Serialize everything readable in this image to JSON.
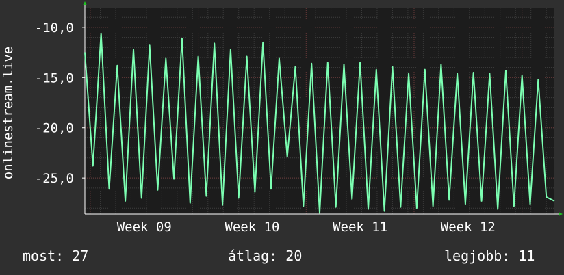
{
  "chart_data": {
    "type": "line",
    "ylabel": "onlinestream.live",
    "y_ticks": [
      "-10,0",
      "-15,0",
      "-20,0",
      "-25,0"
    ],
    "y_tick_values": [
      -10,
      -15,
      -20,
      -25
    ],
    "ylim": [
      -28.6,
      -8.1
    ],
    "x_ticks": [
      "Week 09",
      "Week 10",
      "Week 11",
      "Week 12"
    ],
    "x_tick_values": [
      2.2,
      6.2,
      10.2,
      14.2
    ],
    "xlim": [
      0,
      17.4
    ],
    "grid": true,
    "series": [
      {
        "color": "#7cffb2",
        "x": [
          0,
          0.3,
          0.6,
          0.9,
          1.2,
          1.5,
          1.8,
          2.1,
          2.4,
          2.7,
          3.0,
          3.3,
          3.6,
          3.9,
          4.2,
          4.5,
          4.8,
          5.1,
          5.4,
          5.7,
          6.0,
          6.3,
          6.6,
          6.9,
          7.2,
          7.5,
          7.8,
          8.1,
          8.4,
          8.7,
          9.0,
          9.3,
          9.6,
          9.9,
          10.2,
          10.5,
          10.8,
          11.1,
          11.4,
          11.7,
          12.0,
          12.3,
          12.6,
          12.9,
          13.2,
          13.5,
          13.8,
          14.1,
          14.4,
          14.7,
          15.0,
          15.3,
          15.6,
          15.9,
          16.2,
          16.5,
          16.8,
          17.1,
          17.4
        ],
        "values": [
          -12.5,
          -23.8,
          -10.6,
          -26.1,
          -13.8,
          -27.3,
          -12.2,
          -27.0,
          -11.8,
          -26.2,
          -13.1,
          -25.1,
          -11.1,
          -27.5,
          -12.9,
          -26.8,
          -11.6,
          -27.7,
          -12.2,
          -27.0,
          -12.9,
          -26.4,
          -11.5,
          -26.1,
          -13.1,
          -22.9,
          -13.9,
          -27.8,
          -13.6,
          -28.5,
          -13.5,
          -27.9,
          -13.7,
          -27.1,
          -13.5,
          -28.1,
          -14.2,
          -28.3,
          -13.9,
          -27.9,
          -14.6,
          -28.0,
          -14.2,
          -27.8,
          -13.7,
          -27.2,
          -14.6,
          -27.6,
          -14.5,
          -27.3,
          -14.6,
          -28.1,
          -14.3,
          -27.8,
          -14.8,
          -27.6,
          -15.2,
          -26.9,
          -27.3
        ]
      }
    ]
  },
  "stats": {
    "current": "most: 27",
    "average": "átlag: 20",
    "best": "legjobb: 11"
  }
}
